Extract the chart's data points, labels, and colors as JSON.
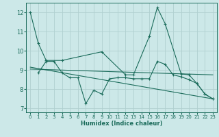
{
  "background_color": "#cce8e8",
  "grid_color": "#b0d0d0",
  "line_color": "#1a6b5a",
  "xlabel": "Humidex (Indice chaleur)",
  "xlim": [
    -0.5,
    23.5
  ],
  "ylim": [
    6.8,
    12.5
  ],
  "yticks": [
    7,
    8,
    9,
    10,
    11,
    12
  ],
  "xticks": [
    0,
    1,
    2,
    3,
    4,
    5,
    6,
    7,
    8,
    9,
    10,
    11,
    12,
    13,
    14,
    15,
    16,
    17,
    18,
    19,
    20,
    21,
    22,
    23
  ],
  "series": [
    {
      "x": [
        0,
        1,
        2,
        4,
        9,
        12,
        13,
        15,
        16,
        17,
        19,
        20,
        21,
        22,
        23
      ],
      "y": [
        12.0,
        10.4,
        9.5,
        9.5,
        9.95,
        8.75,
        8.75,
        10.75,
        12.25,
        11.4,
        8.8,
        8.75,
        8.3,
        7.75,
        7.5
      ],
      "has_markers": true
    },
    {
      "x": [
        1,
        2,
        3,
        4,
        5,
        6,
        7,
        8,
        9,
        10,
        11,
        12,
        13,
        14,
        15,
        16,
        17,
        18,
        19,
        20,
        21,
        22,
        23
      ],
      "y": [
        8.85,
        9.45,
        9.45,
        8.85,
        8.6,
        8.6,
        7.25,
        7.95,
        7.75,
        8.55,
        8.6,
        8.6,
        8.55,
        8.55,
        8.55,
        9.45,
        9.3,
        8.75,
        8.65,
        8.5,
        8.3,
        7.75,
        7.5
      ],
      "has_markers": true
    },
    {
      "x": [
        0,
        23
      ],
      "y": [
        9.05,
        8.75
      ],
      "has_markers": false
    },
    {
      "x": [
        0,
        23
      ],
      "y": [
        9.15,
        7.5
      ],
      "has_markers": false
    }
  ]
}
